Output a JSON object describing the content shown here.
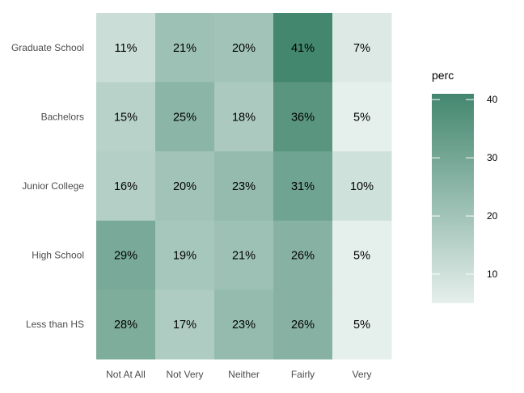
{
  "chart_data": {
    "type": "heatmap",
    "rows": [
      "Graduate School",
      "Bachelors",
      "Junior College",
      "High School",
      "Less than HS"
    ],
    "columns": [
      "Not At All",
      "Not Very",
      "Neither",
      "Fairly",
      "Very"
    ],
    "values": [
      [
        11,
        21,
        20,
        41,
        7
      ],
      [
        15,
        25,
        18,
        36,
        5
      ],
      [
        16,
        20,
        23,
        31,
        10
      ],
      [
        29,
        19,
        21,
        26,
        5
      ],
      [
        28,
        17,
        23,
        26,
        5
      ]
    ],
    "cell_labels": [
      [
        "11%",
        "21%",
        "20%",
        "41%",
        "7%"
      ],
      [
        "15%",
        "25%",
        "18%",
        "36%",
        "5%"
      ],
      [
        "16%",
        "20%",
        "23%",
        "31%",
        "10%"
      ],
      [
        "29%",
        "19%",
        "21%",
        "26%",
        "5%"
      ],
      [
        "28%",
        "17%",
        "23%",
        "26%",
        "5%"
      ]
    ],
    "legend": {
      "title": "perc",
      "ticks": [
        10,
        20,
        30,
        40
      ],
      "tick_labels": [
        "10",
        "20",
        "30",
        "40"
      ],
      "range": [
        5,
        41
      ],
      "color_low": "#e5efec",
      "color_high": "#43876f",
      "placement": "right"
    }
  }
}
